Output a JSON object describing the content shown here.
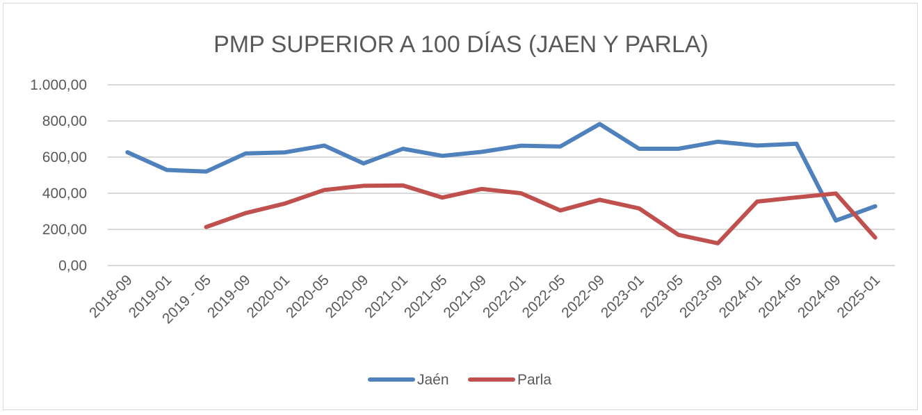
{
  "chart_data": {
    "type": "line",
    "title": "PMP SUPERIOR A 100 DÍAS (JAEN Y PARLA)",
    "xlabel": "",
    "ylabel": "",
    "categories": [
      "2018-09",
      "2019-01",
      "2019 - 05",
      "2019-09",
      "2020-01",
      "2020-05",
      "2020-09",
      "2021-01",
      "2021-05",
      "2021-09",
      "2022-01",
      "2022-05",
      "2022-09",
      "2023-01",
      "2023-05",
      "2023-09",
      "2024-01",
      "2024-05",
      "2024-09",
      "2025-01"
    ],
    "ylim": [
      0,
      1000
    ],
    "yticks": [
      0,
      200,
      400,
      600,
      800,
      1000
    ],
    "ytick_labels": [
      "0,00",
      "200,00",
      "400,00",
      "600,00",
      "800,00",
      "1.000,00"
    ],
    "grid": true,
    "legend_position": "bottom",
    "series": [
      {
        "name": "Jaén",
        "color": "#4f81bd",
        "values": [
          627,
          529,
          520,
          620,
          626,
          664,
          565,
          646,
          607,
          629,
          663,
          659,
          783,
          646,
          646,
          685,
          664,
          674,
          249,
          328
        ]
      },
      {
        "name": "Parla",
        "color": "#c0504d",
        "values": [
          null,
          null,
          213,
          290,
          343,
          418,
          441,
          443,
          376,
          424,
          400,
          305,
          364,
          316,
          170,
          123,
          354,
          377,
          399,
          155
        ]
      }
    ]
  }
}
